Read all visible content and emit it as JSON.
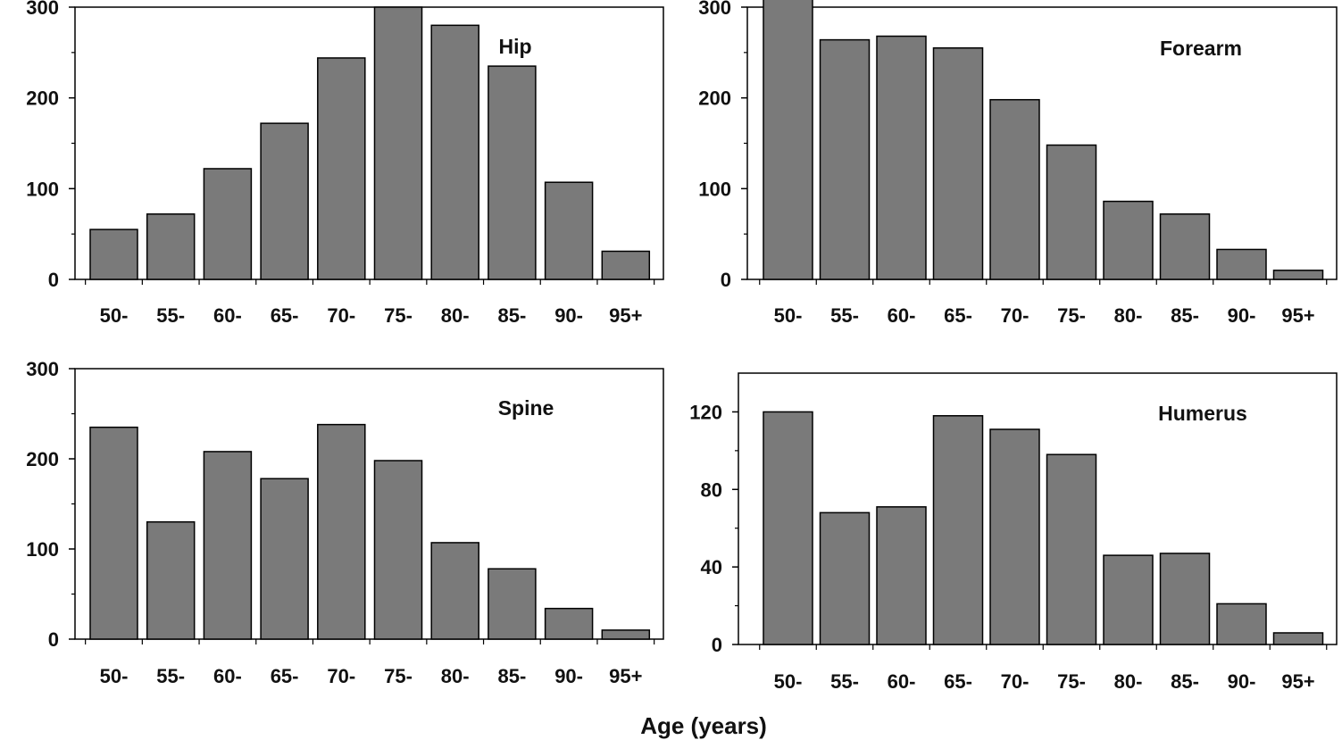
{
  "figure": {
    "xlabel": "Age (years)",
    "bar_color": "#7a7a7a",
    "edge_color": "#000000"
  },
  "chart_data": [
    {
      "type": "bar",
      "title": "Hip",
      "categories": [
        "50-",
        "55-",
        "60-",
        "65-",
        "70-",
        "75-",
        "80-",
        "85-",
        "90-",
        "95+"
      ],
      "values": [
        55,
        72,
        122,
        172,
        244,
        300,
        280,
        235,
        107,
        31
      ],
      "ylim": [
        0,
        300
      ],
      "yticks": [
        0,
        100,
        200,
        300
      ],
      "yminor": [
        50,
        150,
        250
      ],
      "xlabel": "Age (years)",
      "ylabel": ""
    },
    {
      "type": "bar",
      "title": "Forearm",
      "categories": [
        "50-",
        "55-",
        "60-",
        "65-",
        "70-",
        "75-",
        "80-",
        "85-",
        "90-",
        "95+"
      ],
      "values": [
        318,
        264,
        268,
        255,
        198,
        148,
        86,
        72,
        33,
        10
      ],
      "ylim": [
        0,
        300
      ],
      "yticks": [
        0,
        100,
        200,
        300
      ],
      "yminor": [
        50,
        150,
        250
      ],
      "xlabel": "Age (years)",
      "ylabel": ""
    },
    {
      "type": "bar",
      "title": "Spine",
      "categories": [
        "50-",
        "55-",
        "60-",
        "65-",
        "70-",
        "75-",
        "80-",
        "85-",
        "90-",
        "95+"
      ],
      "values": [
        235,
        130,
        208,
        178,
        238,
        198,
        107,
        78,
        34,
        10
      ],
      "ylim": [
        0,
        300
      ],
      "yticks": [
        0,
        100,
        200,
        300
      ],
      "yminor": [
        50,
        150,
        250
      ],
      "xlabel": "Age (years)",
      "ylabel": ""
    },
    {
      "type": "bar",
      "title": "Humerus",
      "categories": [
        "50-",
        "55-",
        "60-",
        "65-",
        "70-",
        "75-",
        "80-",
        "85-",
        "90-",
        "95+"
      ],
      "values": [
        120,
        68,
        71,
        118,
        111,
        98,
        46,
        47,
        21,
        6
      ],
      "ylim": [
        0,
        140
      ],
      "yticks": [
        0,
        40,
        80,
        120
      ],
      "yminor": [
        20,
        60,
        100
      ],
      "xlabel": "Age (years)",
      "ylabel": ""
    }
  ]
}
